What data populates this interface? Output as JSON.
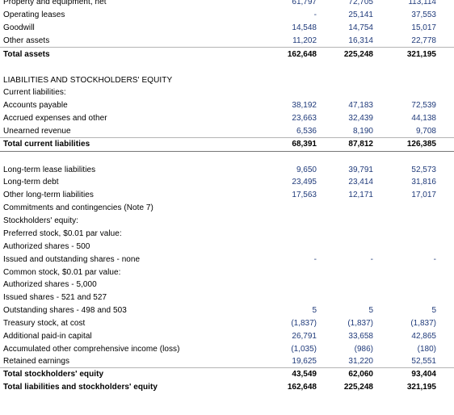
{
  "assets": {
    "rows": [
      {
        "label": "Property and equipment, net",
        "v1": "61,797",
        "v2": "72,705",
        "v3": "113,114"
      },
      {
        "label": "Operating leases",
        "v1": "-",
        "v2": "25,141",
        "v3": "37,553"
      },
      {
        "label": "Goodwill",
        "v1": "14,548",
        "v2": "14,754",
        "v3": "15,017"
      },
      {
        "label": "Other assets",
        "v1": "11,202",
        "v2": "16,314",
        "v3": "22,778"
      },
      {
        "label": "Total assets",
        "v1": "162,648",
        "v2": "225,248",
        "v3": "321,195"
      }
    ]
  },
  "liabilities": {
    "heading": "LIABILITIES AND STOCKHOLDERS' EQUITY",
    "current_heading": "Current liabilities:",
    "current_rows": [
      {
        "label": "Accounts payable",
        "v1": "38,192",
        "v2": "47,183",
        "v3": "72,539"
      },
      {
        "label": "Accrued expenses and other",
        "v1": "23,663",
        "v2": "32,439",
        "v3": "44,138"
      },
      {
        "label": "Unearned revenue",
        "v1": "6,536",
        "v2": "8,190",
        "v3": "9,708"
      },
      {
        "label": "Total current liabilities",
        "v1": "68,391",
        "v2": "87,812",
        "v3": "126,385"
      }
    ],
    "longterm_rows": [
      {
        "label": "Long-term lease liabilities",
        "v1": "9,650",
        "v2": "39,791",
        "v3": "52,573"
      },
      {
        "label": "Long-term debt",
        "v1": "23,495",
        "v2": "23,414",
        "v3": "31,816"
      },
      {
        "label": "Other long-term liabilities",
        "v1": "17,563",
        "v2": "12,171",
        "v3": "17,017"
      }
    ]
  },
  "equity": {
    "lines": [
      {
        "label": "Commitments and contingencies (Note 7)"
      },
      {
        "label": "Stockholders' equity:"
      },
      {
        "label": "Preferred stock, $0.01 par value:"
      },
      {
        "label": "Authorized shares - 500"
      },
      {
        "label": "Issued and outstanding shares - none",
        "v1": "-",
        "v2": "-",
        "v3": "-"
      },
      {
        "label": "Common stock, $0.01 par value:"
      },
      {
        "label": "Authorized shares - 5,000"
      },
      {
        "label": "Issued shares - 521 and 527"
      },
      {
        "label": "Outstanding shares - 498 and 503",
        "v1": "5",
        "v2": "5",
        "v3": "5"
      },
      {
        "label": "Treasury stock, at cost",
        "v1": "(1,837)",
        "v2": "(1,837)",
        "v3": "(1,837)"
      },
      {
        "label": "Additional paid-in capital",
        "v1": "26,791",
        "v2": "33,658",
        "v3": "42,865"
      },
      {
        "label": "Accumulated other comprehensive income (loss)",
        "v1": "(1,035)",
        "v2": "(986)",
        "v3": "(180)"
      },
      {
        "label": "Retained earnings",
        "v1": "19,625",
        "v2": "31,220",
        "v3": "52,551"
      },
      {
        "label": "Total stockholders' equity",
        "v1": "43,549",
        "v2": "62,060",
        "v3": "93,404"
      },
      {
        "label": "Total liabilities and stockholders' equity",
        "v1": "162,648",
        "v2": "225,248",
        "v3": "321,195"
      }
    ]
  }
}
